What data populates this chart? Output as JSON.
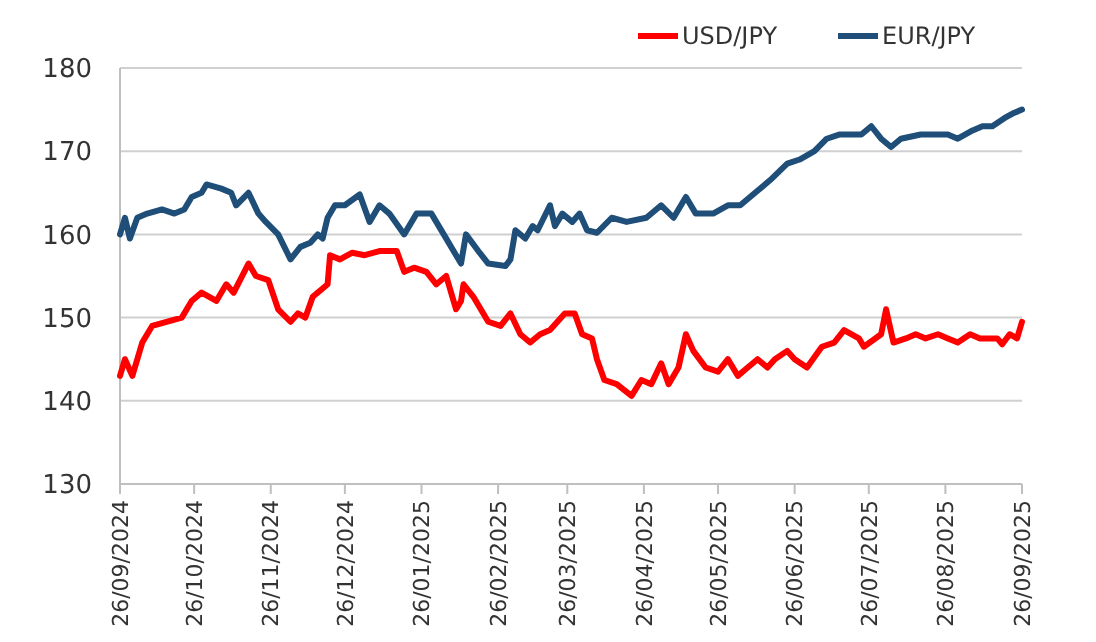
{
  "chart_data": {
    "type": "line",
    "series": [
      {
        "name": "USD/JPY",
        "color": "#ff0000",
        "x": [
          "2024-09-26",
          "2024-09-28",
          "2024-10-01",
          "2024-10-05",
          "2024-10-09",
          "2024-10-21",
          "2024-10-25",
          "2024-10-29",
          "2024-11-04",
          "2024-11-08",
          "2024-11-11",
          "2024-11-17",
          "2024-11-20",
          "2024-11-25",
          "2024-11-29",
          "2024-12-04",
          "2024-12-07",
          "2024-12-10",
          "2024-12-13",
          "2024-12-17",
          "2024-12-19",
          "2024-12-20",
          "2024-12-24",
          "2024-12-29",
          "2025-01-03",
          "2025-01-09",
          "2025-01-16",
          "2025-01-19",
          "2025-01-23",
          "2025-01-28",
          "2025-02-01",
          "2025-02-05",
          "2025-02-09",
          "2025-02-11",
          "2025-02-12",
          "2025-02-16",
          "2025-02-22",
          "2025-02-27",
          "2025-03-03",
          "2025-03-07",
          "2025-03-11",
          "2025-03-15",
          "2025-03-19",
          "2025-03-22",
          "2025-03-25",
          "2025-03-29",
          "2025-04-01",
          "2025-04-05",
          "2025-04-07",
          "2025-04-10",
          "2025-04-15",
          "2025-04-21",
          "2025-04-25",
          "2025-04-29",
          "2025-05-03",
          "2025-05-06",
          "2025-05-10",
          "2025-05-13",
          "2025-05-16",
          "2025-05-21",
          "2025-05-26",
          "2025-05-30",
          "2025-06-03",
          "2025-06-07",
          "2025-06-11",
          "2025-06-15",
          "2025-06-18",
          "2025-06-23",
          "2025-06-26",
          "2025-07-01",
          "2025-07-07",
          "2025-07-12",
          "2025-07-16",
          "2025-07-22",
          "2025-07-24",
          "2025-07-31",
          "2025-08-02",
          "2025-08-05",
          "2025-08-10",
          "2025-08-14",
          "2025-08-18",
          "2025-08-23",
          "2025-08-27",
          "2025-08-31",
          "2025-09-05",
          "2025-09-09",
          "2025-09-16",
          "2025-09-18",
          "2025-09-21",
          "2025-09-24",
          "2025-09-26"
        ],
        "values": [
          143,
          145,
          143,
          147,
          149,
          150,
          152,
          153,
          152,
          154,
          153,
          156.5,
          155,
          154.5,
          151,
          149.5,
          150.5,
          150,
          152.5,
          153.5,
          154,
          157.5,
          157,
          157.8,
          157.5,
          158,
          158,
          155.5,
          156,
          155.5,
          154,
          155,
          151,
          152,
          154,
          152.5,
          149.5,
          149,
          150.5,
          148,
          147,
          148,
          148.5,
          149.5,
          150.5,
          150.5,
          148,
          147.5,
          145,
          142.5,
          142,
          140.6,
          142.5,
          142,
          144.5,
          142,
          144,
          148,
          146,
          144,
          143.5,
          145,
          143,
          144,
          145,
          144,
          145,
          146,
          145,
          144,
          146.5,
          147,
          148.5,
          147.5,
          146.5,
          148,
          151,
          147,
          147.5,
          148,
          147.5,
          148,
          147.5,
          147,
          148,
          147.5,
          147.5,
          146.8,
          148,
          147.5,
          149.5
        ]
      },
      {
        "name": "EUR/JPY",
        "color": "#1f4e79",
        "x": [
          "2024-09-26",
          "2024-09-28",
          "2024-09-30",
          "2024-10-03",
          "2024-10-07",
          "2024-10-13",
          "2024-10-18",
          "2024-10-22",
          "2024-10-25",
          "2024-10-29",
          "2024-10-31",
          "2024-11-06",
          "2024-11-10",
          "2024-11-12",
          "2024-11-17",
          "2024-11-21",
          "2024-11-24",
          "2024-11-29",
          "2024-12-04",
          "2024-12-08",
          "2024-12-12",
          "2024-12-15",
          "2024-12-17",
          "2024-12-19",
          "2024-12-22",
          "2024-12-26",
          "2025-01-01",
          "2025-01-05",
          "2025-01-09",
          "2025-01-13",
          "2025-01-19",
          "2025-01-24",
          "2025-01-30",
          "2025-02-04",
          "2025-02-09",
          "2025-02-11",
          "2025-02-13",
          "2025-02-18",
          "2025-02-22",
          "2025-03-01",
          "2025-03-03",
          "2025-03-05",
          "2025-03-09",
          "2025-03-12",
          "2025-03-14",
          "2025-03-19",
          "2025-03-21",
          "2025-03-24",
          "2025-03-28",
          "2025-03-31",
          "2025-04-03",
          "2025-04-07",
          "2025-04-13",
          "2025-04-19",
          "2025-04-27",
          "2025-05-03",
          "2025-05-08",
          "2025-05-13",
          "2025-05-17",
          "2025-05-24",
          "2025-05-30",
          "2025-06-04",
          "2025-06-10",
          "2025-06-16",
          "2025-06-23",
          "2025-06-28",
          "2025-07-04",
          "2025-07-09",
          "2025-07-14",
          "2025-07-23",
          "2025-07-27",
          "2025-07-31",
          "2025-08-04",
          "2025-08-08",
          "2025-08-16",
          "2025-08-22",
          "2025-08-27",
          "2025-08-31",
          "2025-09-06",
          "2025-09-10",
          "2025-09-14",
          "2025-09-19",
          "2025-09-22",
          "2025-09-26"
        ],
        "values": [
          160,
          162,
          159.5,
          162,
          162.5,
          163,
          162.5,
          163,
          164.5,
          165,
          166,
          165.5,
          165,
          163.5,
          165,
          162.5,
          161.5,
          160,
          157,
          158.5,
          159,
          160,
          159.5,
          162,
          163.5,
          163.5,
          164.8,
          161.5,
          163.5,
          162.5,
          160,
          162.5,
          162.5,
          160,
          157.5,
          156.5,
          160,
          158,
          156.5,
          156.2,
          157,
          160.5,
          159.5,
          161,
          160.5,
          163.5,
          161,
          162.5,
          161.5,
          162.5,
          160.5,
          160.2,
          162,
          161.5,
          162,
          163.5,
          162,
          164.5,
          162.5,
          162.5,
          163.5,
          163.5,
          165,
          166.5,
          168.5,
          169,
          170,
          171.5,
          172,
          172,
          173,
          171.5,
          170.5,
          171.5,
          172,
          172,
          172,
          171.5,
          172.5,
          173,
          173,
          174,
          174.5,
          175
        ]
      }
    ],
    "xlim": [
      "2024-09-26",
      "2025-09-26"
    ],
    "xticks": [
      {
        "value": "2024-09-26",
        "label": "26/09/2024"
      },
      {
        "value": "2024-10-26",
        "label": "26/10/2024"
      },
      {
        "value": "2024-11-26",
        "label": "26/11/2024"
      },
      {
        "value": "2024-12-26",
        "label": "26/12/2024"
      },
      {
        "value": "2025-01-26",
        "label": "26/01/2025"
      },
      {
        "value": "2025-02-26",
        "label": "26/02/2025"
      },
      {
        "value": "2025-03-26",
        "label": "26/03/2025"
      },
      {
        "value": "2025-04-26",
        "label": "26/04/2025"
      },
      {
        "value": "2025-05-26",
        "label": "26/05/2025"
      },
      {
        "value": "2025-06-26",
        "label": "26/06/2025"
      },
      {
        "value": "2025-07-26",
        "label": "26/07/2025"
      },
      {
        "value": "2025-08-26",
        "label": "26/08/2025"
      },
      {
        "value": "2025-09-26",
        "label": "26/09/2025"
      }
    ],
    "ylim": [
      130,
      180
    ],
    "yticks": [
      130,
      140,
      150,
      160,
      170,
      180
    ],
    "grid": "y",
    "legend": "top right",
    "marker": "none",
    "line_style": "solid"
  }
}
